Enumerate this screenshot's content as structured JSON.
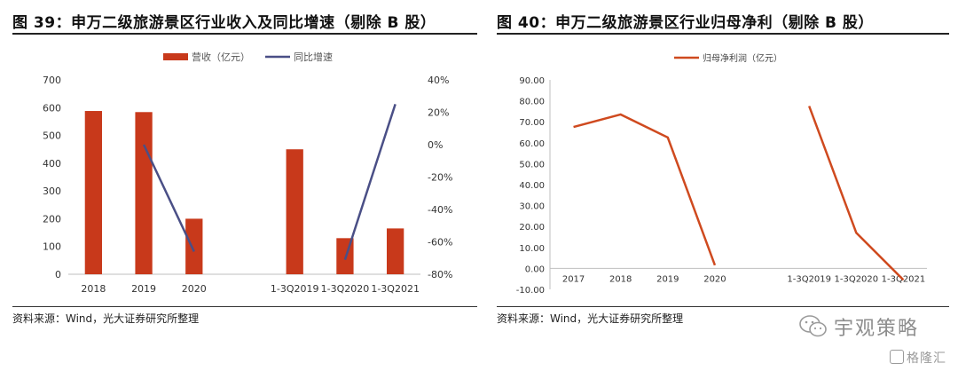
{
  "figures": [
    {
      "title": "图 39：申万二级旅游景区行业收入及同比增速（剔除 B 股）",
      "source": "资料来源：Wind，光大证券研究所整理"
    },
    {
      "title": "图 40：申万二级旅游景区行业归母净利（剔除 B 股）",
      "source": "资料来源：Wind，光大证券研究所整理"
    }
  ],
  "watermark": {
    "text": "宇观策略",
    "icon": "wechat-bubble-icon"
  },
  "brand": {
    "text": "格隆汇",
    "icon": "gelonghui-logo-icon"
  },
  "colors": {
    "bar": "#c8391b",
    "line_yoy": "#4a4f86",
    "line_profit": "#cf4a1f"
  },
  "chart_data": [
    {
      "type": "bar",
      "categories": [
        "2018",
        "2019",
        "2020",
        "",
        "1-3Q2019",
        "1-3Q2020",
        "1-3Q2021"
      ],
      "series": [
        {
          "name": "营收（亿元）",
          "type": "bar",
          "axis": "left",
          "values": [
            588,
            584,
            200,
            null,
            450,
            130,
            165
          ]
        },
        {
          "name": "同比增速",
          "type": "line",
          "axis": "right",
          "values": [
            null,
            0,
            -66,
            null,
            null,
            -71,
            25
          ]
        }
      ],
      "ylim": [
        0,
        700
      ],
      "yticks": [
        "0",
        "100",
        "200",
        "300",
        "400",
        "500",
        "600",
        "700"
      ],
      "y2lim": [
        -80,
        40
      ],
      "y2ticks": [
        "-80%",
        "-60%",
        "-40%",
        "-20%",
        "0%",
        "20%",
        "40%"
      ],
      "legend": "top-center",
      "grid": false
    },
    {
      "type": "line",
      "categories": [
        "2017",
        "2018",
        "2019",
        "2020",
        "",
        "1-3Q2019",
        "1-3Q2020",
        "1-3Q2021"
      ],
      "series": [
        {
          "name": "归母净利润（亿元）",
          "values": [
            67.5,
            73.5,
            62.5,
            1.5,
            null,
            77.5,
            17,
            -5.5
          ]
        }
      ],
      "ylim": [
        -10,
        90
      ],
      "yticks": [
        "-10.00",
        "0.00",
        "10.00",
        "20.00",
        "30.00",
        "40.00",
        "50.00",
        "60.00",
        "70.00",
        "80.00",
        "90.00"
      ],
      "legend": "top-center",
      "grid": false
    }
  ]
}
